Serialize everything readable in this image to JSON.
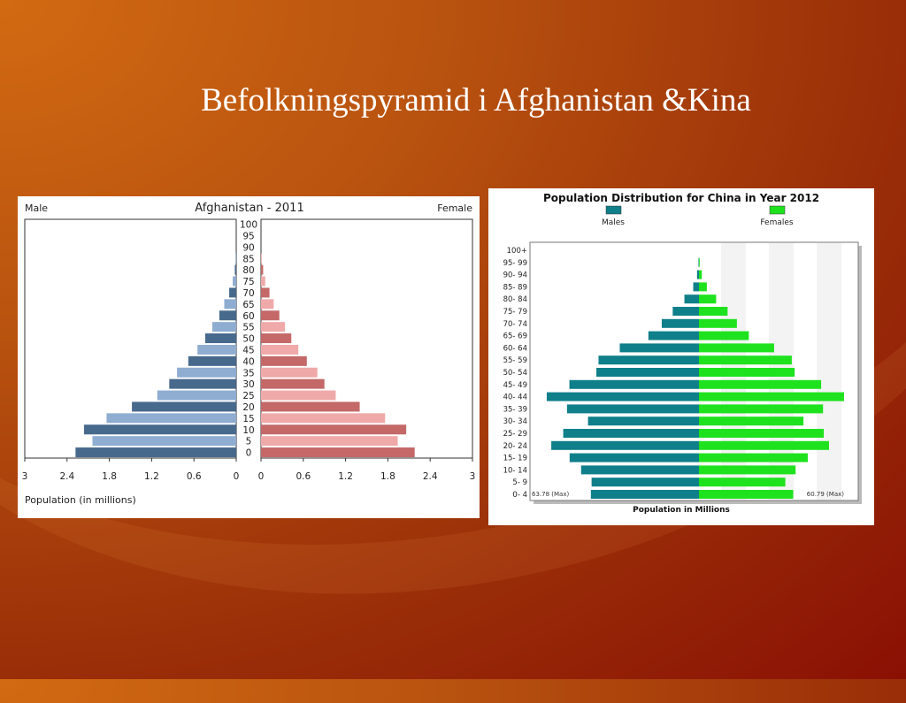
{
  "slide": {
    "title": "Befolkningspyramid i Afghanistan &Kina"
  },
  "chart_data": [
    {
      "type": "bar",
      "title": "Afghanistan - 2011",
      "left_label": "Male",
      "right_label": "Female",
      "xlabel": "Population (in millions)",
      "categories": [
        "0",
        "5",
        "10",
        "15",
        "20",
        "25",
        "30",
        "35",
        "40",
        "45",
        "50",
        "55",
        "60",
        "65",
        "70",
        "75",
        "80",
        "85",
        "90",
        "95",
        "100"
      ],
      "x_ticks_male": [
        "3",
        "2.4",
        "1.8",
        "1.2",
        "0.6",
        "0"
      ],
      "x_ticks_female": [
        "0",
        "0.6",
        "1.2",
        "1.8",
        "2.4",
        "3"
      ],
      "xlim": [
        0,
        3
      ],
      "series": [
        {
          "name": "Male",
          "values": [
            2.28,
            2.04,
            2.16,
            1.84,
            1.48,
            1.12,
            0.95,
            0.84,
            0.68,
            0.55,
            0.44,
            0.34,
            0.24,
            0.17,
            0.1,
            0.05,
            0.02,
            0.01,
            0,
            0,
            0
          ]
        },
        {
          "name": "Female",
          "values": [
            2.18,
            1.94,
            2.06,
            1.76,
            1.4,
            1.06,
            0.9,
            0.8,
            0.65,
            0.53,
            0.43,
            0.34,
            0.26,
            0.18,
            0.12,
            0.06,
            0.03,
            0.01,
            0,
            0,
            0
          ]
        }
      ],
      "colors": {
        "male_dark": "#47698c",
        "male_light": "#8fadd1",
        "female_dark": "#c46868",
        "female_light": "#f0a9a9"
      }
    },
    {
      "type": "bar",
      "title": "Population Distribution for China in Year 2012",
      "legend": [
        "Males",
        "Females"
      ],
      "legend_position": "top",
      "xlabel": "Population in Millions",
      "max_labels": [
        "63.78 (Max)",
        "60.79 (Max)"
      ],
      "xlim": [
        0,
        63.78
      ],
      "categories": [
        "0- 4",
        "5- 9",
        "10- 14",
        "15- 19",
        "20- 24",
        "25- 29",
        "30- 34",
        "35- 39",
        "40- 44",
        "45- 49",
        "50- 54",
        "55- 59",
        "60- 64",
        "65- 69",
        "70- 74",
        "75- 79",
        "80- 84",
        "85- 89",
        "90- 94",
        "95- 99",
        "100+"
      ],
      "series": [
        {
          "name": "Males",
          "values": [
            45.3,
            45.0,
            49.4,
            54.2,
            61.9,
            56.9,
            46.5,
            55.3,
            63.8,
            54.3,
            43.0,
            42.1,
            33.2,
            21.2,
            15.6,
            11.0,
            6.1,
            2.4,
            0.8,
            0.2,
            0
          ]
        },
        {
          "name": "Females",
          "values": [
            39.5,
            36.2,
            40.5,
            45.6,
            54.5,
            52.3,
            43.8,
            52.0,
            60.8,
            51.2,
            40.1,
            38.9,
            31.5,
            20.9,
            15.9,
            12.0,
            7.2,
            3.3,
            1.2,
            0.3,
            0
          ]
        }
      ],
      "colors": {
        "males": "#0f7f8a",
        "females": "#1ee21e"
      }
    }
  ]
}
